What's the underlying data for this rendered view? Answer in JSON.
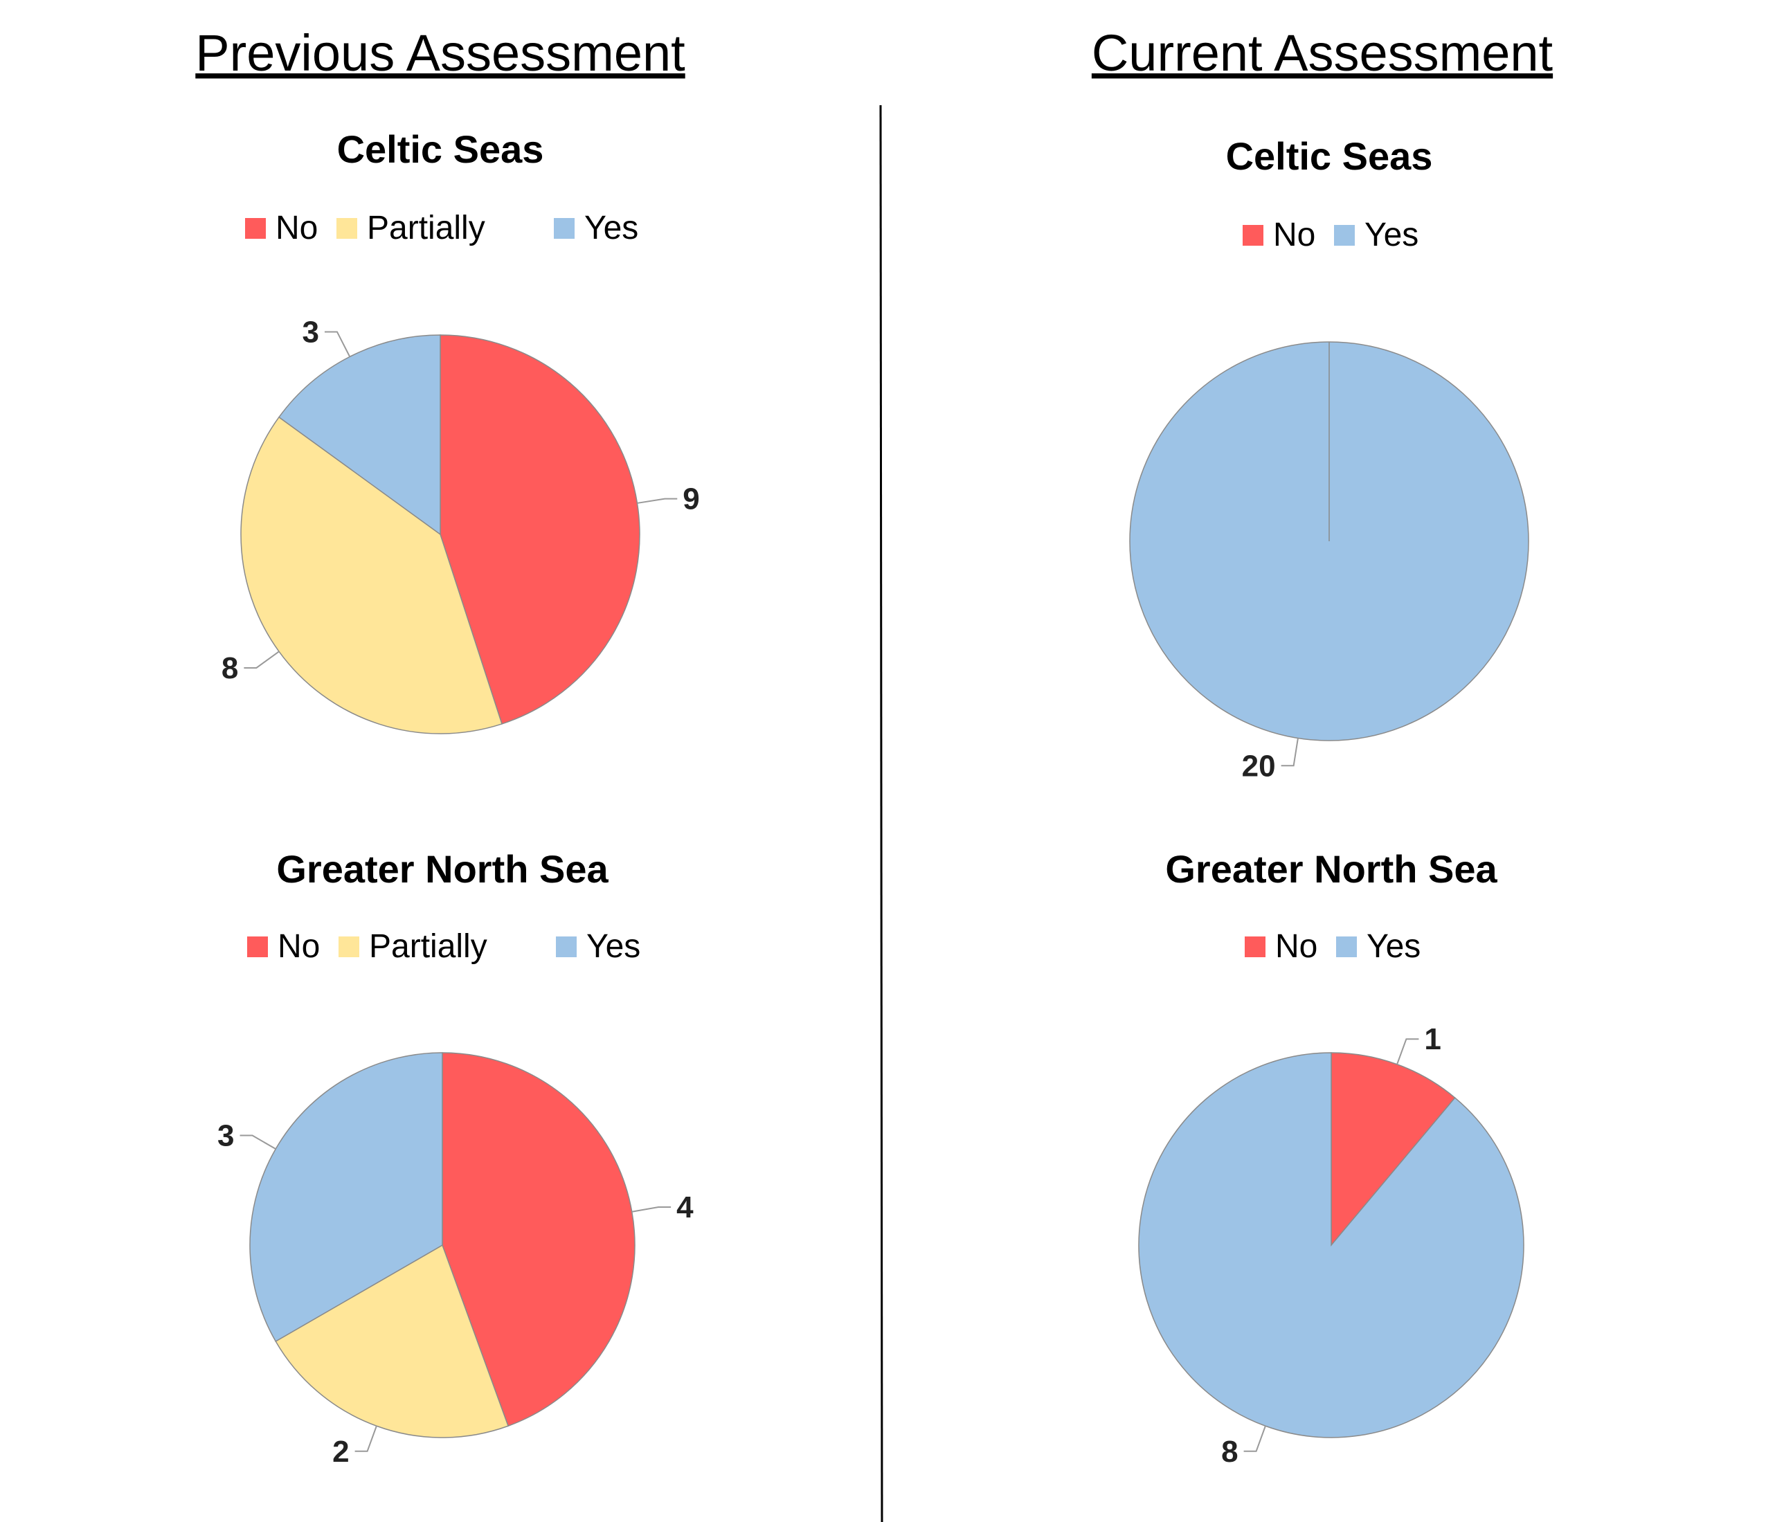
{
  "sections": {
    "previous": "Previous Assessment",
    "current": "Current Assessment"
  },
  "colors": {
    "No": "#FF5B5B",
    "Partially": "#FFE699",
    "Yes": "#9DC3E6"
  },
  "chart_data": [
    {
      "type": "pie",
      "group": "Previous Assessment",
      "title": "Celtic Seas",
      "categories": [
        "No",
        "Partially",
        "Yes"
      ],
      "values": [
        9,
        8,
        3
      ],
      "legend": "top"
    },
    {
      "type": "pie",
      "group": "Current Assessment",
      "title": "Celtic Seas",
      "categories": [
        "No",
        "Yes"
      ],
      "values": [
        0,
        20
      ],
      "legend": "top"
    },
    {
      "type": "pie",
      "group": "Previous Assessment",
      "title": "Greater North Sea",
      "categories": [
        "No",
        "Partially",
        "Yes"
      ],
      "values": [
        4,
        2,
        3
      ],
      "legend": "top"
    },
    {
      "type": "pie",
      "group": "Current Assessment",
      "title": "Greater North Sea",
      "categories": [
        "No",
        "Yes"
      ],
      "values": [
        1,
        8
      ],
      "legend": "top"
    }
  ]
}
